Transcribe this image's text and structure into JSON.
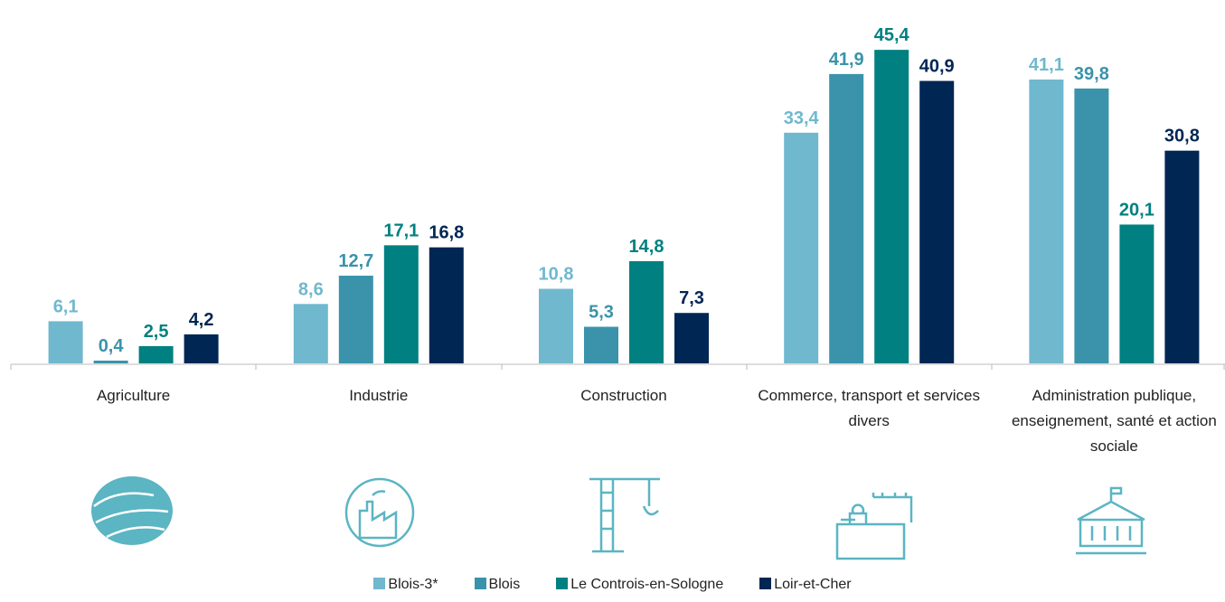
{
  "chart_data": {
    "type": "bar",
    "categories": [
      "Agriculture",
      "Industrie",
      "Construction",
      "Commerce, transport et services divers",
      "Administration publique, enseignement, santé et action sociale"
    ],
    "series": [
      {
        "name": "Blois-3*",
        "color": "#70b8ce",
        "values": [
          6.1,
          8.6,
          10.8,
          33.4,
          41.1
        ],
        "value_labels": [
          "6,1",
          "8,6",
          "10,8",
          "33,4",
          "41,1"
        ]
      },
      {
        "name": "Blois",
        "color": "#3a93ab",
        "values": [
          0.4,
          12.7,
          5.3,
          41.9,
          39.8
        ],
        "value_labels": [
          "0,4",
          "12,7",
          "5,3",
          "41,9",
          "39,8"
        ]
      },
      {
        "name": "Le Controis-en-Sologne",
        "color": "#008080",
        "values": [
          2.5,
          17.1,
          14.8,
          45.4,
          20.1
        ],
        "value_labels": [
          "2,5",
          "17,1",
          "14,8",
          "45,4",
          "20,1"
        ]
      },
      {
        "name": "Loir-et-Cher",
        "color": "#002654",
        "values": [
          4.2,
          16.8,
          7.3,
          40.9,
          30.8
        ],
        "value_labels": [
          "4,2",
          "16,8",
          "7,3",
          "40,9",
          "30,8"
        ]
      }
    ]
  }
}
